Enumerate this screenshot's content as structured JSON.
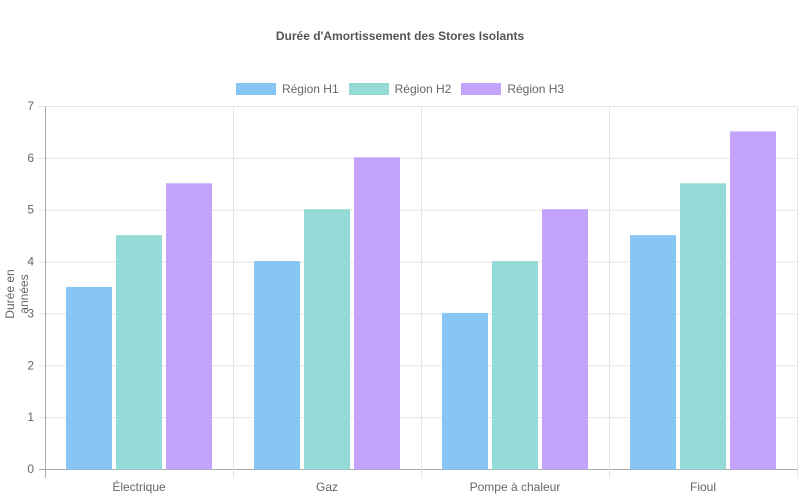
{
  "chart_data": {
    "type": "bar",
    "title": "Durée d'Amortissement des Stores Isolants",
    "xlabel": "",
    "ylabel": "Durée en années",
    "categories": [
      "Électrique",
      "Gaz",
      "Pompe à chaleur",
      "Fioul"
    ],
    "series": [
      {
        "name": "Région H1",
        "values": [
          3.5,
          4,
          3,
          4.5
        ],
        "color": "#87c6f4"
      },
      {
        "name": "Région H2",
        "values": [
          4.5,
          5,
          4,
          5.5
        ],
        "color": "#94dad6"
      },
      {
        "name": "Région H3",
        "values": [
          5.5,
          6,
          5,
          6.5
        ],
        "color": "#c3a3fc"
      }
    ],
    "ylim": [
      0,
      7
    ],
    "yticks": [
      0,
      1,
      2,
      3,
      4,
      5,
      6,
      7
    ],
    "grid": true,
    "legend_position": "top"
  }
}
